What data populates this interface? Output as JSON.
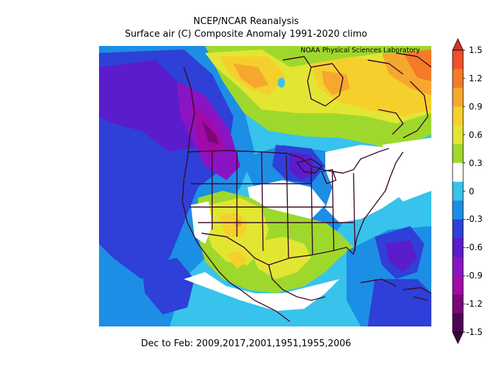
{
  "title_line1": "NCEP/NCAR Reanalysis",
  "title_line2": "Surface air (C) Composite Anomaly 1991-2020 climo",
  "credit": "NOAA Physical Sciences Laboratory",
  "caption": "Dec to Feb: 2009,2017,2001,1951,1955,2006",
  "colorbar": {
    "ticks": [
      "1.5",
      "1.2",
      "0.9",
      "0.6",
      "0.3",
      "0",
      "-0.3",
      "-0.6",
      "-0.9",
      "-1.2",
      "-1.5"
    ],
    "colors": [
      "#f0502a",
      "#f57a28",
      "#f6a82e",
      "#f5d02c",
      "#e2e633",
      "#9fd82c",
      "#ffffff",
      "#38c3ec",
      "#1d8ee6",
      "#2e40d7",
      "#5b1ccb",
      "#8a14c4",
      "#a10aa8",
      "#7a087a",
      "#4f0655"
    ],
    "top_arrow_color": "#d83226",
    "bottom_arrow_color": "#3a0440"
  },
  "palette": {
    "light_blue": "#38c3ec",
    "blue": "#1d8ee6",
    "royal_blue": "#2e40d7",
    "violet": "#5b1ccb",
    "purple": "#8a14c4",
    "magenta": "#a10aa8",
    "dark_magenta": "#7a087a",
    "lime": "#9fd82c",
    "yellow_green": "#e2e633",
    "yellow": "#f5d02c",
    "gold": "#f6a82e",
    "orange": "#f57a28",
    "boundary": "#3a0a2a"
  }
}
